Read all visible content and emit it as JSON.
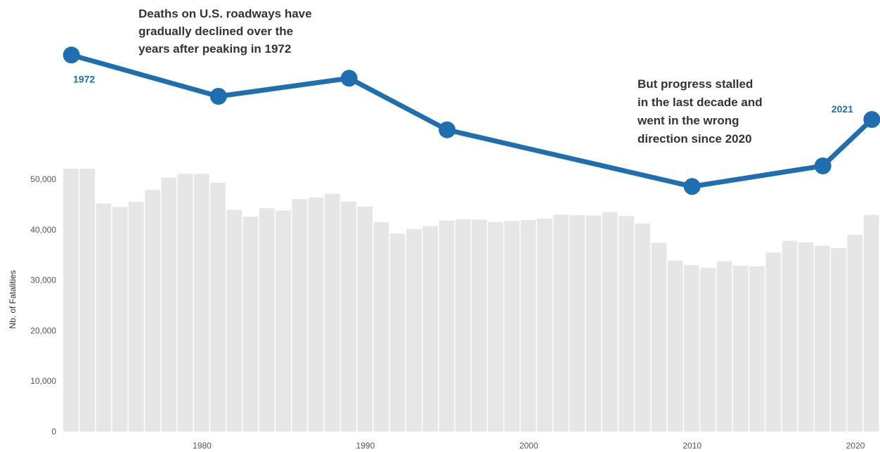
{
  "chart_data": {
    "type": "bar",
    "ylabel": "Nb. of Fatalities",
    "xlabel": "",
    "ylim": [
      0,
      52000
    ],
    "y_ticks": [
      0,
      10000,
      20000,
      30000,
      40000,
      50000
    ],
    "y_tick_labels": [
      "0",
      "10,000",
      "20,000",
      "30,000",
      "40,000",
      "50,000"
    ],
    "x_ticks": [
      1980,
      1990,
      2000,
      2010,
      2020
    ],
    "grid": false,
    "bar_color": "#e6e6e6",
    "line_color": "#1f6fb0",
    "bars": {
      "years": [
        1972,
        1973,
        1974,
        1975,
        1976,
        1977,
        1978,
        1979,
        1980,
        1981,
        1982,
        1983,
        1984,
        1985,
        1986,
        1987,
        1988,
        1989,
        1990,
        1991,
        1992,
        1993,
        1994,
        1995,
        1996,
        1997,
        1998,
        1999,
        2000,
        2001,
        2002,
        2003,
        2004,
        2005,
        2006,
        2007,
        2008,
        2009,
        2010,
        2011,
        2012,
        2013,
        2014,
        2015,
        2016,
        2017,
        2018,
        2019,
        2020,
        2021
      ],
      "values": [
        54589,
        54052,
        45196,
        44525,
        45523,
        47878,
        50331,
        51093,
        51091,
        49301,
        43945,
        42589,
        44257,
        43825,
        46087,
        46390,
        47087,
        45582,
        44599,
        41508,
        39250,
        40150,
        40716,
        41817,
        42065,
        42013,
        41501,
        41717,
        41945,
        42196,
        43005,
        42884,
        42836,
        43510,
        42708,
        41259,
        37423,
        33883,
        32999,
        32479,
        33782,
        32893,
        32744,
        35484,
        37806,
        37473,
        36835,
        36355,
        39007,
        42939
      ]
    },
    "line": {
      "note": "",
      "points": [
        {
          "x": 1972,
          "y": 0.875
        },
        {
          "x": 1981,
          "y": 0.795
        },
        {
          "x": 1989,
          "y": 0.83
        },
        {
          "x": 1995,
          "y": 0.73
        },
        {
          "x": 2010,
          "y": 0.62
        },
        {
          "x": 2018,
          "y": 0.66
        },
        {
          "x": 2021,
          "y": 0.75
        }
      ]
    },
    "point_labels": {
      "first": "1972",
      "last": "2021"
    },
    "annotations": {
      "left": [
        "Deaths on U.S. roadways have",
        "gradually declined over the",
        "years after peaking in 1972"
      ],
      "right": [
        "But progress stalled",
        "in the last decade and",
        "went in the wrong",
        "direction since 2020"
      ]
    }
  }
}
